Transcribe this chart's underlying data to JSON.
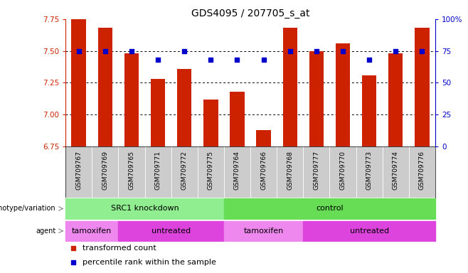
{
  "title": "GDS4095 / 207705_s_at",
  "samples": [
    "GSM709767",
    "GSM709769",
    "GSM709765",
    "GSM709771",
    "GSM709772",
    "GSM709775",
    "GSM709764",
    "GSM709766",
    "GSM709768",
    "GSM709777",
    "GSM709770",
    "GSM709773",
    "GSM709774",
    "GSM709776"
  ],
  "bar_values": [
    7.75,
    7.68,
    7.48,
    7.28,
    7.36,
    7.12,
    7.18,
    6.88,
    7.68,
    7.5,
    7.56,
    7.31,
    7.48,
    7.68
  ],
  "percentile_values": [
    75,
    75,
    75,
    68,
    75,
    68,
    68,
    68,
    75,
    75,
    75,
    68,
    75,
    75
  ],
  "bar_color": "#cc2200",
  "percentile_color": "#0000cc",
  "ylim_left": [
    6.75,
    7.75
  ],
  "ylim_right": [
    0,
    100
  ],
  "yticks_left": [
    6.75,
    7.0,
    7.25,
    7.5,
    7.75
  ],
  "yticks_right": [
    0,
    25,
    50,
    75,
    100
  ],
  "ytick_labels_right": [
    "0",
    "25",
    "50",
    "75",
    "100%"
  ],
  "gridlines": [
    7.0,
    7.25,
    7.5
  ],
  "background_color": "#ffffff",
  "left_axis_color": "#cc2200",
  "right_axis_color": "#0000cc",
  "genotype_groups": [
    {
      "label": "SRC1 knockdown",
      "start": 0,
      "end": 6,
      "color": "#90ee90"
    },
    {
      "label": "control",
      "start": 6,
      "end": 14,
      "color": "#66dd55"
    }
  ],
  "agent_groups": [
    {
      "label": "tamoxifen",
      "start": 0,
      "end": 2,
      "color": "#ee88ee"
    },
    {
      "label": "untreated",
      "start": 2,
      "end": 6,
      "color": "#dd44dd"
    },
    {
      "label": "tamoxifen",
      "start": 6,
      "end": 9,
      "color": "#ee88ee"
    },
    {
      "label": "untreated",
      "start": 9,
      "end": 14,
      "color": "#dd44dd"
    }
  ],
  "legend_items": [
    {
      "label": "transformed count",
      "color": "#cc2200"
    },
    {
      "label": "percentile rank within the sample",
      "color": "#0000cc"
    }
  ],
  "tick_bg_color": "#cccccc",
  "geno_label_arrow_color": "#888888"
}
